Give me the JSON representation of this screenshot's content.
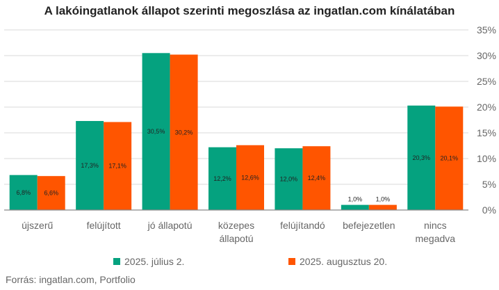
{
  "chart_data": {
    "type": "bar",
    "title": "A lakóingatlanok állapot szerinti megoszlása az ingatlan.com kínálatában",
    "categories": [
      "újszerű",
      "felújított",
      "jó állapotú",
      "közepes állapotú",
      "felújítandó",
      "befejezetlen",
      "nincs megadva"
    ],
    "category_lines": [
      [
        "újszerű"
      ],
      [
        "felújított"
      ],
      [
        "jó állapotú"
      ],
      [
        "közepes",
        "állapotú"
      ],
      [
        "felújítandó"
      ],
      [
        "befejezetlen"
      ],
      [
        "nincs",
        "megadva"
      ]
    ],
    "series": [
      {
        "name": "2025. július 2.",
        "color": "#05a27f",
        "values": [
          6.8,
          17.3,
          30.5,
          12.2,
          12.0,
          1.0,
          20.3
        ],
        "labels": [
          "6,8%",
          "17,3%",
          "30,5%",
          "12,2%",
          "12,0%",
          "1,0%",
          "20,3%"
        ]
      },
      {
        "name": "2025. augusztus 20.",
        "color": "#ff5500",
        "values": [
          6.6,
          17.1,
          30.2,
          12.6,
          12.4,
          1.0,
          20.1
        ],
        "labels": [
          "6,6%",
          "17,1%",
          "30,2%",
          "12,6%",
          "12,4%",
          "1,0%",
          "20,1%"
        ]
      }
    ],
    "ylim": [
      0,
      35
    ],
    "yticks": [
      0,
      5,
      10,
      15,
      20,
      25,
      30,
      35
    ],
    "ytick_labels": [
      "0%",
      "5%",
      "10%",
      "15%",
      "20%",
      "25%",
      "30%",
      "35%"
    ],
    "y_axis_side": "right",
    "grid": true,
    "legend": "bottom"
  },
  "source": "Forrás: ingatlan.com, Portfolio"
}
